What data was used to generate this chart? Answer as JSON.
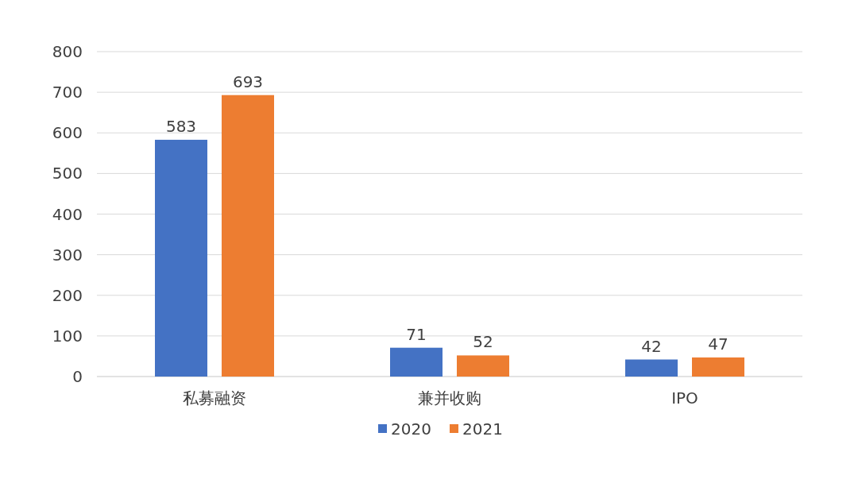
{
  "chart_data": {
    "type": "bar",
    "categories": [
      "私募融资",
      "兼并收购",
      "IPO"
    ],
    "series": [
      {
        "name": "2020",
        "color": "#4472c4",
        "values": [
          583,
          71,
          42
        ]
      },
      {
        "name": "2021",
        "color": "#ed7d31",
        "values": [
          693,
          52,
          47
        ]
      }
    ],
    "ylim": [
      0,
      800
    ],
    "yticks": [
      0,
      100,
      200,
      300,
      400,
      500,
      600,
      700,
      800
    ],
    "grid": "y",
    "legend": "bottom",
    "data_labels": true
  }
}
